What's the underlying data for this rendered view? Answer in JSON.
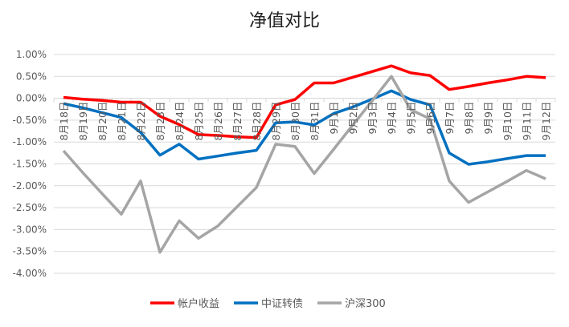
{
  "chart_data": {
    "type": "line",
    "title": "净值对比",
    "xlabel": "",
    "ylabel": "",
    "ylim": [
      -4,
      1
    ],
    "yticks": [
      1,
      0.5,
      0,
      -0.5,
      -1,
      -1.5,
      -2,
      -2.5,
      -3,
      -3.5,
      -4
    ],
    "ytick_labels": [
      "1.00%",
      "0.50%",
      "0.00%",
      "-0.50%",
      "-1.00%",
      "-1.50%",
      "-2.00%",
      "-2.50%",
      "-3.00%",
      "-3.50%",
      "-4.00%"
    ],
    "grid": true,
    "legend": "bottom",
    "categories": [
      "8月18日",
      "8月19日",
      "8月20日",
      "8月21日",
      "8月22日",
      "8月23日",
      "8月24日",
      "8月25日",
      "8月26日",
      "8月27日",
      "8月28日",
      "8月29日",
      "8月30日",
      "8月31日",
      "9月1日",
      "9月2日",
      "9月3日",
      "9月4日",
      "9月5日",
      "9月6日",
      "9月7日",
      "9月8日",
      "9月9日",
      "9月10日",
      "9月11日",
      "9月12日"
    ],
    "series": [
      {
        "name": "帐户收益",
        "color": "#ff0000",
        "values": [
          0.02,
          -0.02,
          -0.05,
          -0.09,
          -0.09,
          -0.41,
          -0.6,
          -0.83,
          -0.85,
          -0.88,
          -0.9,
          -0.15,
          -0.03,
          0.35,
          0.35,
          0.48,
          0.61,
          0.74,
          0.58,
          0.52,
          0.2,
          0.27,
          0.35,
          0.42,
          0.5,
          0.47
        ]
      },
      {
        "name": "中证转债",
        "color": "#0070c0",
        "values": [
          -0.12,
          -0.22,
          -0.33,
          -0.44,
          -0.78,
          -1.3,
          -1.05,
          -1.39,
          -1.32,
          -1.25,
          -1.19,
          -0.56,
          -0.54,
          -0.61,
          -0.35,
          -0.2,
          -0.02,
          0.17,
          -0.03,
          -0.15,
          -1.25,
          -1.51,
          -1.45,
          -1.38,
          -1.31,
          -1.31
        ]
      },
      {
        "name": "沪深300",
        "color": "#a5a5a5",
        "values": [
          -1.2,
          -1.7,
          -2.18,
          -2.65,
          -1.89,
          -3.52,
          -2.8,
          -3.2,
          -2.92,
          -2.48,
          -2.04,
          -1.05,
          -1.1,
          -1.72,
          -1.17,
          -0.61,
          -0.06,
          0.5,
          -0.26,
          -0.47,
          -1.89,
          -2.38,
          -2.14,
          -1.9,
          -1.65,
          -1.84
        ]
      }
    ]
  }
}
